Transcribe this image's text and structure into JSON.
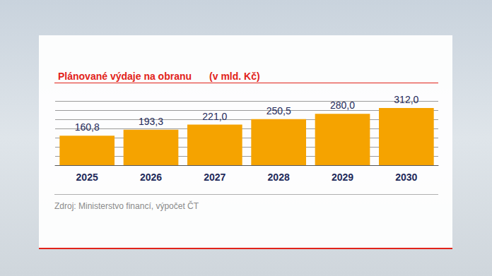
{
  "chart_data": {
    "type": "bar",
    "title": "Plánované výdaje na obranu",
    "subtitle": "(v mld. Kč)",
    "source": "Zdroj: Ministerstvo financí, výpočet ČT",
    "categories": [
      "2025",
      "2026",
      "2027",
      "2028",
      "2029",
      "2030"
    ],
    "values": [
      160.8,
      193.3,
      221.0,
      250.5,
      280.0,
      312.0
    ],
    "value_labels": [
      "160,8",
      "193,3",
      "221,0",
      "250,5",
      "280,0",
      "312,0"
    ],
    "color": "#f5a300",
    "ylim": [
      0,
      350
    ],
    "yticks": [
      0,
      50,
      100,
      150,
      200,
      250,
      300,
      350
    ],
    "grid": true,
    "data_labels": true,
    "tick_labels": "x"
  }
}
